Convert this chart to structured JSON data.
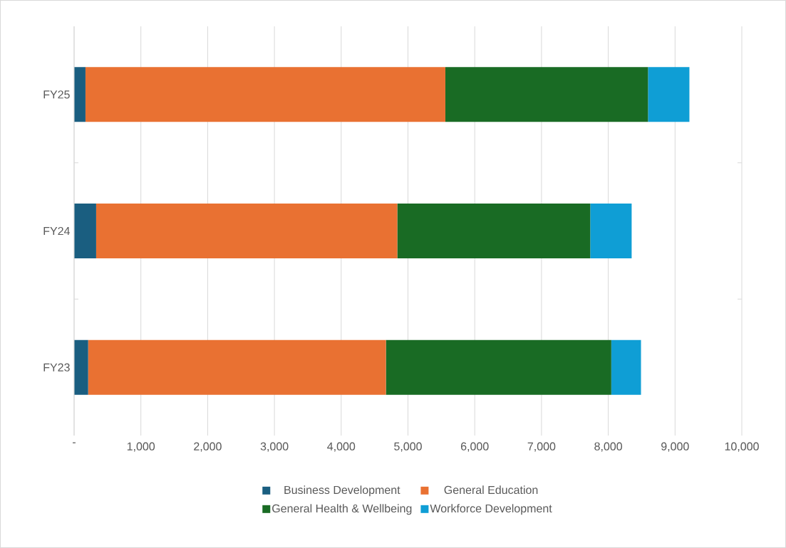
{
  "chart_data": {
    "type": "bar",
    "orientation": "horizontal",
    "stacked": true,
    "categories": [
      "FY25",
      "FY24",
      "FY23"
    ],
    "series": [
      {
        "name": "Business Development",
        "color": "#1a5e80",
        "values": [
          170,
          330,
          210
        ]
      },
      {
        "name": "General Education",
        "color": "#e97132",
        "values": [
          5390,
          4510,
          4460
        ]
      },
      {
        "name": "General Health & Wellbeing",
        "color": "#196b24",
        "values": [
          3035,
          2890,
          3375
        ]
      },
      {
        "name": "Workforce Development",
        "color": "#0f9ed5",
        "values": [
          620,
          620,
          445
        ]
      }
    ],
    "xlim": [
      0,
      10000
    ],
    "xticks": [
      {
        "value": 0,
        "label": "-"
      },
      {
        "value": 1000,
        "label": "1,000"
      },
      {
        "value": 2000,
        "label": "2,000"
      },
      {
        "value": 3000,
        "label": "3,000"
      },
      {
        "value": 4000,
        "label": "4,000"
      },
      {
        "value": 5000,
        "label": "5,000"
      },
      {
        "value": 6000,
        "label": "6,000"
      },
      {
        "value": 7000,
        "label": "7,000"
      },
      {
        "value": 8000,
        "label": "8,000"
      },
      {
        "value": 9000,
        "label": "9,000"
      },
      {
        "value": 10000,
        "label": "10,000"
      }
    ],
    "grid": "x",
    "legend": "bottom"
  }
}
